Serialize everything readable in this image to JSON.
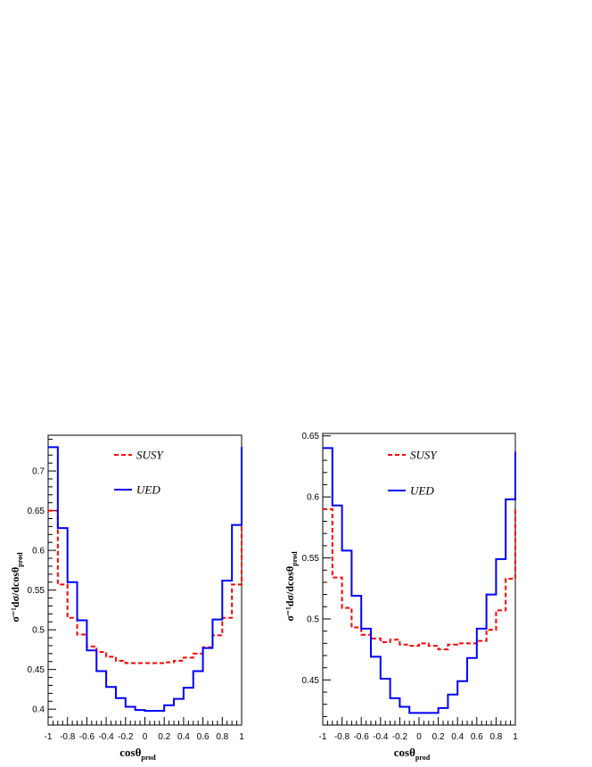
{
  "colors": {
    "susy": "#ff0000",
    "ued": "#0000ff",
    "axis": "#000000"
  },
  "chart_data": [
    {
      "type": "histogram",
      "xlabel_main": "cosθ",
      "xlabel_sub": "prod",
      "ylabel_main": "σ⁻¹dσ/dcosθ",
      "ylabel_sub": "prod",
      "xlim": [
        -1,
        1
      ],
      "ylim": [
        0.38,
        0.745
      ],
      "xticks": [
        "-1",
        "-0.8",
        "-0.6",
        "-0.4",
        "-0.2",
        "0",
        "0.2",
        "0.4",
        "0.6",
        "0.8",
        "1"
      ],
      "yticks": [
        "0.4",
        "0.45",
        "0.5",
        "0.55",
        "0.6",
        "0.65",
        "0.7"
      ],
      "bin_edges": [
        -1,
        -0.9,
        -0.8,
        -0.7,
        -0.6,
        -0.5,
        -0.4,
        -0.3,
        -0.2,
        -0.1,
        0,
        0.1,
        0.2,
        0.3,
        0.4,
        0.5,
        0.6,
        0.7,
        0.8,
        0.9,
        1
      ],
      "legend_position": "top-center",
      "series": [
        {
          "name": "SUSY",
          "style": "dashed",
          "values": [
            0.65,
            0.557,
            0.515,
            0.494,
            0.479,
            0.472,
            0.466,
            0.461,
            0.458,
            0.458,
            0.458,
            0.458,
            0.459,
            0.461,
            0.465,
            0.47,
            0.478,
            0.493,
            0.515,
            0.557,
            0.65
          ]
        },
        {
          "name": "UED",
          "style": "solid",
          "values": [
            0.73,
            0.628,
            0.56,
            0.512,
            0.474,
            0.448,
            0.428,
            0.414,
            0.403,
            0.399,
            0.398,
            0.398,
            0.405,
            0.413,
            0.427,
            0.448,
            0.477,
            0.513,
            0.562,
            0.632,
            0.73
          ]
        }
      ]
    },
    {
      "type": "histogram",
      "xlabel_main": "cosθ",
      "xlabel_sub": "prod",
      "ylabel_main": "σ⁻¹dσ/dcosθ",
      "ylabel_sub": "prod",
      "xlim": [
        -1,
        1
      ],
      "ylim": [
        0.413,
        0.652
      ],
      "xticks": [
        "-1",
        "-0.8",
        "-0.6",
        "-0.4",
        "-0.2",
        "0",
        "0.2",
        "0.4",
        "0.6",
        "0.8",
        "1"
      ],
      "yticks": [
        "0.45",
        "0.5",
        "0.55",
        "0.6",
        "0.65"
      ],
      "bin_edges": [
        -1,
        -0.9,
        -0.8,
        -0.7,
        -0.6,
        -0.5,
        -0.4,
        -0.3,
        -0.2,
        -0.1,
        0,
        0.1,
        0.2,
        0.3,
        0.4,
        0.5,
        0.6,
        0.7,
        0.8,
        0.9,
        1
      ],
      "legend_position": "top-center",
      "series": [
        {
          "name": "SUSY",
          "style": "dashed",
          "values": [
            0.59,
            0.534,
            0.509,
            0.493,
            0.487,
            0.484,
            0.481,
            0.483,
            0.479,
            0.478,
            0.48,
            0.478,
            0.475,
            0.479,
            0.48,
            0.48,
            0.482,
            0.491,
            0.507,
            0.533,
            0.59
          ]
        },
        {
          "name": "UED",
          "style": "solid",
          "values": [
            0.64,
            0.593,
            0.556,
            0.519,
            0.492,
            0.469,
            0.451,
            0.435,
            0.428,
            0.423,
            0.423,
            0.423,
            0.427,
            0.438,
            0.449,
            0.468,
            0.492,
            0.52,
            0.549,
            0.598,
            0.637
          ]
        }
      ]
    }
  ]
}
